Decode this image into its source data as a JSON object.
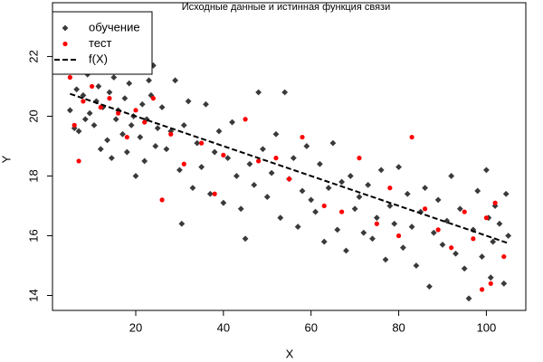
{
  "chart_data": {
    "type": "scatter",
    "title": "Исходные данные и истинная функция связи",
    "x_label": "X",
    "y_label": "Y",
    "xlim": [
      1,
      109
    ],
    "ylim": [
      13.5,
      23.8
    ],
    "xticks": [
      20,
      40,
      60,
      80,
      100
    ],
    "yticks": [
      14,
      16,
      18,
      20,
      22
    ],
    "grid": false,
    "legend": "topleft",
    "series": [
      {
        "name": "обучение",
        "color": "#3a3a3a",
        "marker": "diamond",
        "x": [
          5,
          5.5,
          6,
          6.5,
          7,
          7.5,
          8,
          8.5,
          9,
          9.5,
          10,
          10.5,
          11,
          11.5,
          12,
          12.5,
          13,
          13.5,
          14,
          14.5,
          15,
          15.5,
          16,
          16.5,
          17,
          17.5,
          18,
          18.5,
          19,
          19.5,
          20,
          20.5,
          21,
          21.5,
          22,
          22.5,
          23,
          23.5,
          24,
          24.5,
          25,
          26,
          27,
          28,
          29,
          30,
          30.5,
          31,
          32,
          33,
          34,
          35,
          36,
          37,
          38,
          39,
          40,
          41,
          42,
          43,
          44,
          45,
          46,
          47,
          48,
          49,
          50,
          51,
          52,
          53,
          54,
          55,
          56,
          57,
          58,
          59,
          60,
          61,
          62,
          63,
          64,
          65,
          66,
          67,
          68,
          69,
          70,
          71,
          72,
          73,
          74,
          75,
          76,
          77,
          78,
          79,
          80,
          81,
          82,
          83,
          84,
          85,
          86,
          87,
          88,
          89,
          90,
          91,
          92,
          93,
          94,
          95,
          96,
          97,
          98,
          99,
          100,
          100.5,
          101,
          101.5,
          102,
          103,
          104,
          104.5,
          105
        ],
        "values": [
          20.2,
          21.5,
          19.6,
          20.9,
          19.5,
          22.3,
          20.7,
          19.9,
          21.4,
          20.1,
          22.0,
          19.7,
          20.5,
          21.0,
          18.9,
          20.3,
          22.4,
          19.2,
          20.8,
          18.6,
          21.3,
          19.9,
          20.2,
          22.2,
          19.4,
          20.6,
          18.8,
          21.1,
          19.7,
          20.0,
          18.0,
          21.5,
          19.3,
          20.4,
          18.5,
          19.9,
          21.2,
          20.7,
          21.7,
          19.0,
          19.6,
          20.3,
          18.9,
          19.5,
          21.2,
          18.2,
          16.4,
          19.7,
          20.5,
          17.6,
          19.1,
          18.3,
          20.4,
          17.4,
          18.8,
          19.5,
          17.1,
          18.6,
          19.8,
          18.0,
          16.9,
          15.9,
          18.4,
          17.7,
          20.8,
          18.9,
          17.3,
          18.1,
          19.4,
          16.6,
          20.8,
          17.9,
          18.6,
          16.3,
          17.5,
          19.0,
          17.2,
          16.8,
          18.4,
          15.8,
          17.6,
          19.1,
          16.2,
          17.8,
          15.5,
          18.0,
          16.9,
          17.3,
          16.1,
          17.7,
          15.9,
          16.6,
          18.2,
          15.2,
          17.0,
          16.4,
          18.3,
          15.6,
          17.4,
          16.3,
          15.0,
          16.8,
          17.6,
          14.3,
          16.1,
          17.2,
          15.7,
          16.5,
          18.0,
          15.4,
          16.9,
          14.9,
          13.9,
          16.2,
          17.5,
          15.3,
          18.2,
          16.6,
          14.6,
          15.8,
          17.0,
          16.4,
          14.4,
          17.4,
          16.0
        ]
      },
      {
        "name": "тест",
        "color": "#ff0000",
        "marker": "circle",
        "x": [
          5,
          6,
          7,
          8,
          10,
          12,
          14,
          16,
          18,
          20,
          22,
          24,
          26,
          28,
          31,
          35,
          38,
          40,
          45,
          48,
          52,
          55,
          58,
          63,
          67,
          71,
          75,
          78,
          80,
          83,
          86,
          89,
          92,
          95,
          97,
          99,
          100,
          101,
          102,
          104
        ],
        "values": [
          21.3,
          19.7,
          18.5,
          20.5,
          21.0,
          20.3,
          20.6,
          20.1,
          19.3,
          20.2,
          19.8,
          20.6,
          17.2,
          19.4,
          18.4,
          19.1,
          17.4,
          18.7,
          19.9,
          18.5,
          18.6,
          17.9,
          19.3,
          17.0,
          16.8,
          18.6,
          16.4,
          17.6,
          16.0,
          19.3,
          16.9,
          16.2,
          15.6,
          16.8,
          15.9,
          14.2,
          16.6,
          14.4,
          17.1,
          15.3
        ]
      },
      {
        "name": "f(X)",
        "color": "#000000",
        "marker": "dashed-line",
        "x": [
          5,
          20,
          35,
          50,
          65,
          80,
          95,
          105
        ],
        "values": [
          20.75,
          20.0,
          19.25,
          18.5,
          17.75,
          17.0,
          16.25,
          15.75
        ]
      }
    ]
  }
}
